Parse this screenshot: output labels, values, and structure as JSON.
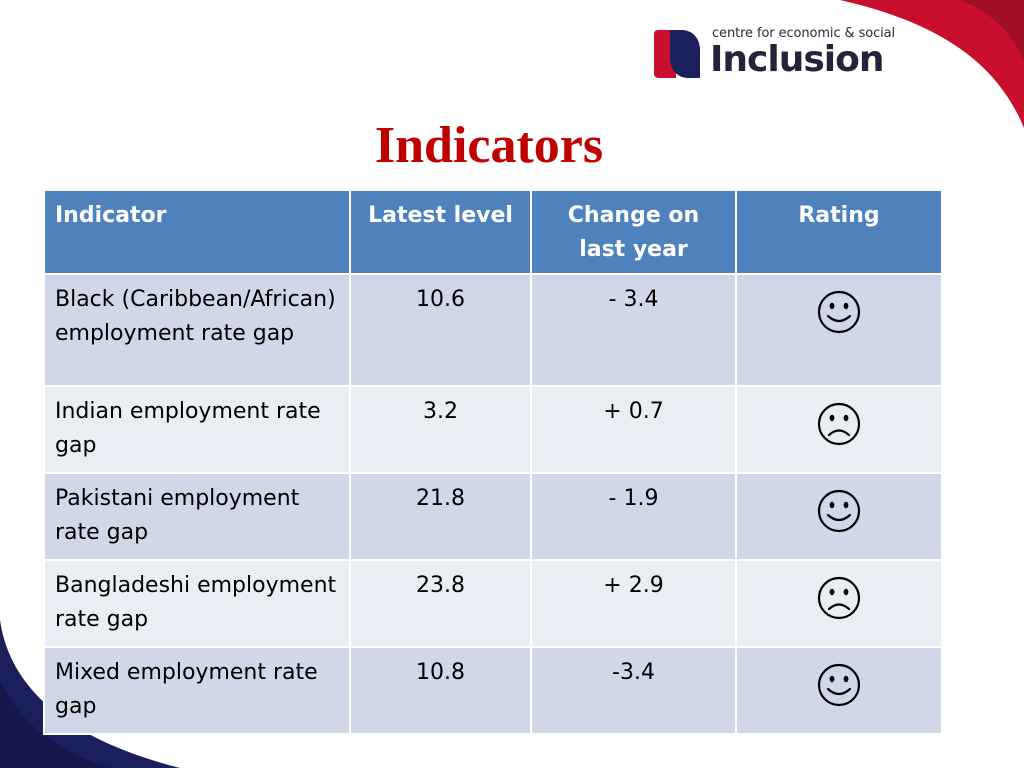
{
  "logo": {
    "small_text": "centre for economic & social",
    "big_text": "Inclusion",
    "colors": {
      "red": "#c8102e",
      "navy": "#1b1f5b"
    }
  },
  "title": "Indicators",
  "table": {
    "headers": [
      "Indicator",
      "Latest level",
      "Change on last year",
      "Rating"
    ],
    "rows": [
      {
        "indicator": "Black (Caribbean/African) employment rate gap",
        "latest_level": "10.6",
        "change": "- 3.4",
        "rating": "smiley-icon"
      },
      {
        "indicator": "Indian employment rate gap",
        "latest_level": "3.2",
        "change": "+ 0.7",
        "rating": "frowny-icon"
      },
      {
        "indicator": "Pakistani employment rate gap",
        "latest_level": "21.8",
        "change": "- 1.9",
        "rating": "smiley-icon"
      },
      {
        "indicator": "Bangladeshi employment rate gap",
        "latest_level": "23.8",
        "change": "+ 2.9",
        "rating": "frowny-icon"
      },
      {
        "indicator": "Mixed employment rate gap",
        "latest_level": "10.8",
        "change": "-3.4",
        "rating": "smiley-icon"
      }
    ]
  },
  "colors": {
    "title": "#c00000",
    "header_bg": "#4f81bd",
    "row_odd_bg": "#d0d8e8",
    "row_even_bg": "#e9edf4",
    "swoosh_red": "#c8102e",
    "swoosh_navy": "#1b1f5b"
  }
}
